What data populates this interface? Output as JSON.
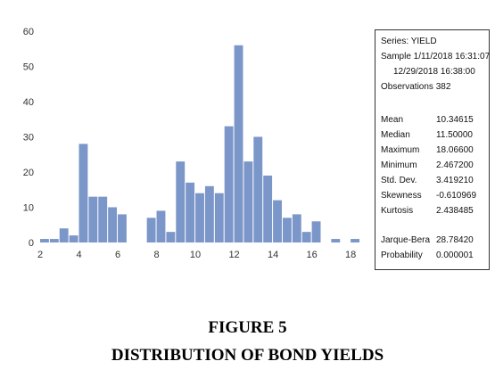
{
  "chart_data": {
    "type": "bar",
    "bin_width": 0.5,
    "bin_starts": [
      2,
      2.5,
      3,
      3.5,
      4,
      4.5,
      5,
      5.5,
      6,
      6.5,
      7,
      7.5,
      8,
      8.5,
      9,
      9.5,
      10,
      10.5,
      11,
      11.5,
      12,
      12.5,
      13,
      13.5,
      14,
      14.5,
      15,
      15.5,
      16,
      16.5,
      17,
      17.5,
      18
    ],
    "values": [
      1,
      1,
      4,
      2,
      28,
      13,
      13,
      10,
      8,
      0,
      0,
      7,
      9,
      3,
      23,
      17,
      14,
      16,
      14,
      33,
      56,
      23,
      30,
      19,
      12,
      7,
      8,
      3,
      6,
      0,
      1,
      0,
      1
    ],
    "xlim": [
      2,
      18.5
    ],
    "ylim": [
      0,
      60
    ],
    "x_ticks": [
      2,
      4,
      6,
      8,
      10,
      12,
      14,
      16,
      18
    ],
    "y_ticks": [
      0,
      10,
      20,
      30,
      40,
      50,
      60
    ],
    "bar_color": "#7b96c9",
    "grid": false
  },
  "stats": {
    "series": "Series: YIELD",
    "sample_line1": "Sample 1/11/2018 16:31:07",
    "sample_line2": "12/29/2018 16:38:00",
    "observations": "Observations 382",
    "rows": [
      {
        "label": "Mean",
        "value": "10.34615"
      },
      {
        "label": "Median",
        "value": "11.50000"
      },
      {
        "label": "Maximum",
        "value": "18.06600"
      },
      {
        "label": "Minimum",
        "value": "2.467200"
      },
      {
        "label": "Std. Dev.",
        "value": "3.419210"
      },
      {
        "label": "Skewness",
        "value": "-0.610969"
      },
      {
        "label": "Kurtosis",
        "value": "2.438485"
      }
    ],
    "tests": [
      {
        "label": "Jarque-Bera",
        "value": "28.78420"
      },
      {
        "label": "Probability",
        "value": "0.000001"
      }
    ]
  },
  "caption": {
    "line1": "FIGURE 5",
    "line2": "DISTRIBUTION OF BOND YIELDS"
  }
}
